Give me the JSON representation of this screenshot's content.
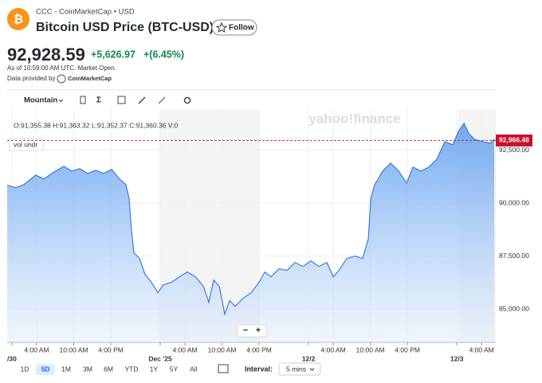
{
  "header": {
    "logo": "₿",
    "source": "CCC - CoinMarketCap • USD",
    "title": "Bitcoin USD Price (BTC-USD)",
    "follow": "Follow"
  },
  "quote": {
    "price": "92,928.59",
    "change": "+5,626.97",
    "change_pct": "+(6.45%)",
    "as_of": "As of 10:59:00 AM UTC. Market Open.",
    "provider": "Data provided by",
    "provider_name": "CoinMarketCap"
  },
  "toolbar": {
    "chart_type": "Mountain",
    "indicators": "Σ"
  },
  "chart_data": {
    "type": "area",
    "ohlc": "O:91,355.38  H:91,363.32  L:91,352.37  C:91,360.36  V:0",
    "study": "vol undr",
    "watermark": "yahoo!finance",
    "color": "#3b7dd8",
    "grid": true,
    "x": [
      -0.77,
      0.65,
      1.94,
      3.87,
      5.16,
      6.45,
      7.74,
      8.39,
      9.68,
      10.97,
      12.26,
      13.55,
      14.84,
      16.13,
      17.42,
      18.45,
      18.97,
      19.35,
      19.74,
      20.65,
      21.55,
      22.58,
      23.61,
      24.52,
      25.81,
      27.1,
      28.39,
      29.68,
      30.97,
      31.87,
      32.65,
      33.55,
      34.45,
      35.23,
      36.13,
      37.42,
      38.71,
      40.0,
      40.9,
      41.94,
      43.23,
      44.52,
      45.81,
      47.1,
      48.39,
      49.68,
      50.97,
      52.0,
      52.9,
      54.19,
      55.48,
      56.77,
      57.68,
      58.06,
      58.71,
      60.0,
      61.29,
      62.58,
      63.87,
      64.9,
      66.19,
      67.48,
      68.77,
      70.06,
      71.35,
      72.26,
      73.16,
      73.94,
      74.84,
      76.13,
      77.42,
      78.06
    ],
    "values": [
      90846,
      90733,
      90883,
      91334,
      91146,
      91410,
      91635,
      91748,
      91522,
      91635,
      91410,
      91560,
      91410,
      91598,
      91146,
      90883,
      90206,
      88702,
      87650,
      87386,
      86634,
      86258,
      85770,
      86146,
      86258,
      86522,
      86747,
      86522,
      86070,
      85318,
      86371,
      86070,
      84754,
      85394,
      85130,
      85506,
      85770,
      86258,
      86747,
      86522,
      86898,
      86822,
      87198,
      87010,
      87274,
      87010,
      87198,
      86522,
      86822,
      87386,
      87499,
      87386,
      88326,
      90206,
      90883,
      91522,
      91898,
      91522,
      90958,
      91710,
      91522,
      91710,
      92086,
      92914,
      92763,
      93402,
      93778,
      93290,
      93026,
      92914,
      92838,
      93026
    ],
    "xlim": [
      -0.77,
      78.3
    ],
    "ylim": [
      83420,
      94450
    ],
    "xticks": [
      {
        "value": 4,
        "label": "4:00 AM"
      },
      {
        "value": 10,
        "label": "10:00 AM"
      },
      {
        "value": 16,
        "label": "4:00 PM"
      },
      {
        "value": 28,
        "label": "4:00 AM"
      },
      {
        "value": 34,
        "label": "10:00 AM"
      },
      {
        "value": 40,
        "label": "4:00 PM"
      },
      {
        "value": 52,
        "label": "4:00 AM"
      },
      {
        "value": 58,
        "label": "10:00 AM"
      },
      {
        "value": 64,
        "label": "4:00 PM"
      },
      {
        "value": 76,
        "label": "4:00 AM"
      }
    ],
    "xdates": [
      {
        "value": 0,
        "label": "/30"
      },
      {
        "value": 24,
        "label": "Dec '25"
      },
      {
        "value": 48,
        "label": "12/2"
      },
      {
        "value": 72,
        "label": "12/3"
      }
    ],
    "yticks": [
      {
        "value": 85000,
        "label": "85,000.00"
      },
      {
        "value": 87500,
        "label": "87,500.00"
      },
      {
        "value": 90000,
        "label": "90,000.00"
      },
      {
        "value": 92500,
        "label": "92,500.00"
      }
    ],
    "last": {
      "value": 92966.48,
      "label": "92,966.48"
    },
    "zoom": [
      "−",
      "+"
    ]
  },
  "footer": {
    "ranges": [
      "1D",
      "5D",
      "1M",
      "3M",
      "6M",
      "YTD",
      "1Y",
      "5Y",
      "All"
    ],
    "selected": "5D",
    "interval_label": "Interval:",
    "interval": "5 mins"
  }
}
